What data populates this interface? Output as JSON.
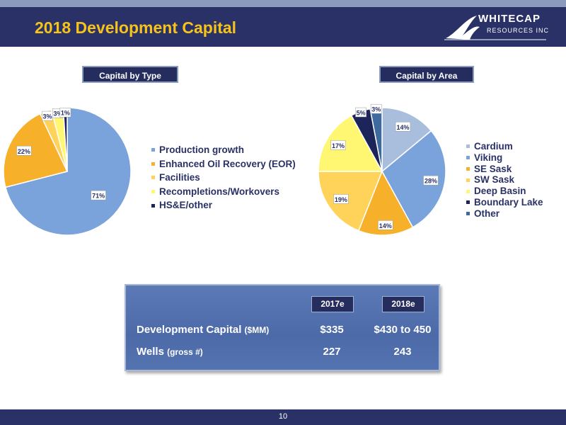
{
  "header": {
    "title": "2018 Development Capital"
  },
  "logo": {
    "line1": "WHITECAP",
    "line2": "RESOURCES INC"
  },
  "colors": {
    "brand_navy": "#2a3166",
    "title_yellow": "#f6c31b"
  },
  "chart_data": [
    {
      "type": "pie",
      "title": "Capital by Type",
      "categories": [
        "Production growth",
        "Enhanced Oil Recovery (EOR)",
        "Facilities",
        "Recompletions/Workovers",
        "HS&E/other"
      ],
      "values": [
        71,
        22,
        3,
        3,
        1
      ],
      "labels": [
        "71%",
        "22%",
        "3%",
        "3%",
        "1%"
      ],
      "colors": [
        "#7aa3dc",
        "#f6b02a",
        "#ffd25a",
        "#fff772",
        "#1c2459"
      ],
      "legend_position": "right"
    },
    {
      "type": "pie",
      "title": "Capital by Area",
      "categories": [
        "Cardium",
        "Viking",
        "SE Sask",
        "SW Sask",
        "Deep Basin",
        "Boundary Lake",
        "Other"
      ],
      "values": [
        14,
        28,
        14,
        19,
        17,
        5,
        3
      ],
      "labels": [
        "14%",
        "28%",
        "14%",
        "19%",
        "17%",
        "5%",
        "3%"
      ],
      "colors": [
        "#a8bedc",
        "#7aa3dc",
        "#f6b02a",
        "#ffd25a",
        "#fff772",
        "#1c2459",
        "#3e6aa0"
      ],
      "legend_position": "right"
    }
  ],
  "table": {
    "headers": [
      "2017e",
      "2018e"
    ],
    "rows": [
      {
        "label": "Development Capital",
        "unit": "($MM)",
        "values": [
          "$335",
          "$430 to 450"
        ]
      },
      {
        "label": "Wells",
        "unit": "(gross #)",
        "values": [
          "227",
          "243"
        ]
      }
    ]
  },
  "footer": {
    "page": "10"
  }
}
